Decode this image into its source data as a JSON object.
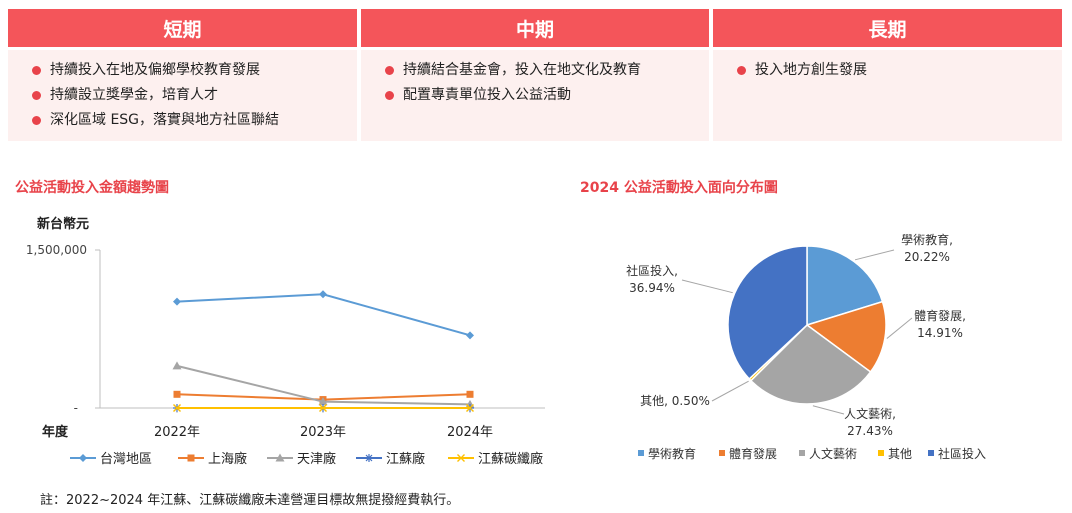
{
  "periods": [
    {
      "title": "短期",
      "items": [
        "持續投入在地及偏鄉學校教育發展",
        "持續設立獎學金，培育人才",
        "深化區域 ESG，落實與地方社區聯結"
      ]
    },
    {
      "title": "中期",
      "items": [
        "持續結合基金會，投入在地文化及教育",
        "配置專責單位投入公益活動"
      ]
    },
    {
      "title": "長期",
      "items": [
        "投入地方創生發展"
      ]
    }
  ],
  "colors": {
    "header": "#f4555a",
    "panel": "#fdf0ef",
    "bullet": "#e8434a",
    "title": "#e8434a"
  },
  "chart_data": [
    {
      "type": "line",
      "title": "公益活動投入金額趨勢圖",
      "ylabel": "新台幣元",
      "xlabel": "年度",
      "ylim": [
        0,
        1500000
      ],
      "y_tick_labels": [
        "-",
        "1,500,000"
      ],
      "categories": [
        "2022年",
        "2023年",
        "2024年"
      ],
      "legend_position": "bottom",
      "grid": false,
      "series": [
        {
          "name": "台灣地區",
          "values": [
            1010000,
            1080000,
            690000
          ],
          "color": "#5b9bd5",
          "marker": "diamond"
        },
        {
          "name": "上海廠",
          "values": [
            130000,
            80000,
            130000
          ],
          "color": "#ed7d31",
          "marker": "square"
        },
        {
          "name": "天津廠",
          "values": [
            400000,
            60000,
            35000
          ],
          "color": "#a5a5a5",
          "marker": "triangle"
        },
        {
          "name": "江蘇廠",
          "values": [
            0,
            0,
            0
          ],
          "color": "#4472c4",
          "marker": "star"
        },
        {
          "name": "江蘇碳纖廠",
          "values": [
            0,
            0,
            0
          ],
          "color": "#ffc000",
          "marker": "x"
        }
      ]
    },
    {
      "type": "pie",
      "title": "2024 公益活動投入面向分布圖",
      "legend_position": "bottom",
      "slices": [
        {
          "name": "學術教育",
          "value": 20.22,
          "label": "20.22%",
          "color": "#5b9bd5"
        },
        {
          "name": "體育發展",
          "value": 14.91,
          "label": "14.91%",
          "color": "#ed7d31"
        },
        {
          "name": "人文藝術",
          "value": 27.43,
          "label": "27.43%",
          "color": "#a5a5a5"
        },
        {
          "name": "其他",
          "value": 0.5,
          "label": "0.50%",
          "color": "#ffc000"
        },
        {
          "name": "社區投入",
          "value": 36.94,
          "label": "36.94%",
          "color": "#4472c4"
        }
      ]
    }
  ],
  "note": "註：2022~2024 年江蘇、江蘇碳纖廠未達營運目標故無提撥經費執行。"
}
